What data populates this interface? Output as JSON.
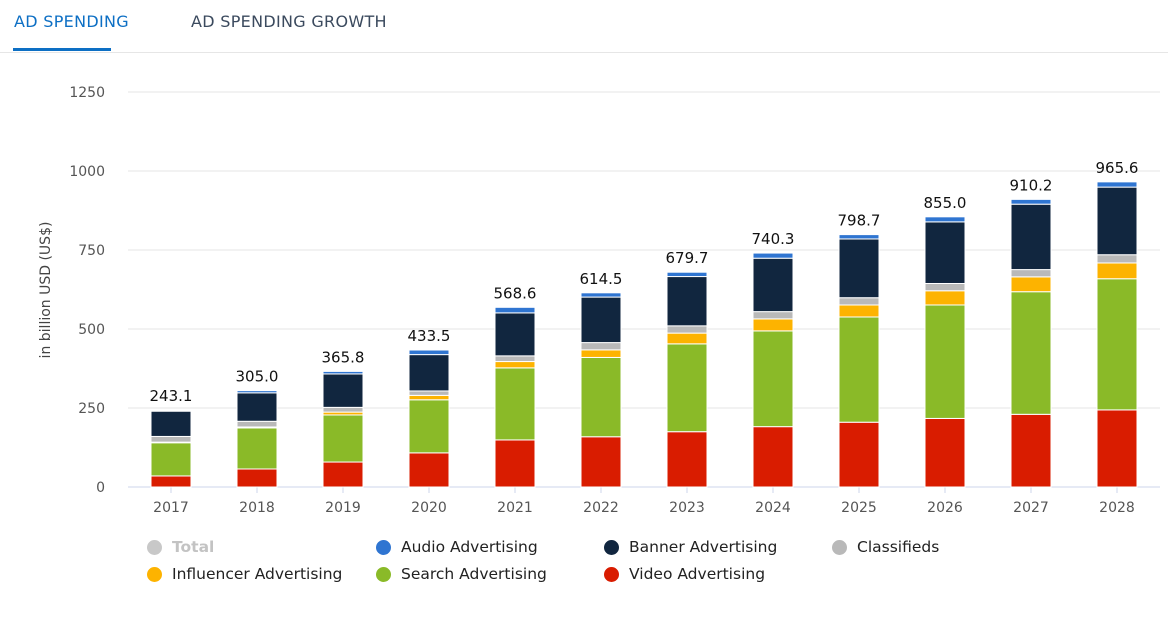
{
  "tabs": [
    {
      "label": "AD SPENDING",
      "active": true
    },
    {
      "label": "AD SPENDING GROWTH",
      "active": false
    }
  ],
  "chart_data": {
    "type": "bar",
    "stacked": true,
    "ylabel": "in billion USD (US$)",
    "xlabel": "",
    "ylim": [
      0,
      1250
    ],
    "yticks": [
      0,
      250,
      500,
      750,
      1000,
      1250
    ],
    "grid": true,
    "legend_position": "bottom",
    "categories": [
      "2017",
      "2018",
      "2019",
      "2020",
      "2021",
      "2022",
      "2023",
      "2024",
      "2025",
      "2026",
      "2027",
      "2028"
    ],
    "totals": [
      243.1,
      305.0,
      365.8,
      433.5,
      568.6,
      614.5,
      679.7,
      740.3,
      798.7,
      855.0,
      910.2,
      965.6
    ],
    "total_labels": [
      "243.1",
      "305.0",
      "365.8",
      "433.5",
      "568.6",
      "614.5",
      "679.7",
      "740.3",
      "798.7",
      "855.0",
      "910.2",
      "965.6"
    ],
    "series": [
      {
        "name": "Video Advertising",
        "color": "#d91c00",
        "values": [
          35,
          57,
          79,
          108,
          149,
          159,
          175,
          191,
          205,
          217,
          230,
          244
        ]
      },
      {
        "name": "Search Advertising",
        "color": "#8aba28",
        "values": [
          105,
          130,
          149,
          168,
          228,
          251,
          278,
          303,
          333,
          359,
          388,
          415
        ]
      },
      {
        "name": "Influencer Advertising",
        "color": "#fdb300",
        "values": [
          2,
          3,
          9,
          14,
          20,
          24,
          34,
          38,
          38,
          45,
          47,
          50
        ]
      },
      {
        "name": "Classifieds",
        "color": "#b9b9b9",
        "values": [
          18,
          18,
          15,
          14,
          18,
          23,
          23,
          23,
          23,
          23,
          23,
          26
        ]
      },
      {
        "name": "Banner Advertising",
        "color": "#11263f",
        "values": [
          80,
          90,
          105.8,
          115,
          136,
          144,
          156,
          169,
          186,
          195,
          207,
          214
        ]
      },
      {
        "name": "Audio Advertising",
        "color": "#2f75d1",
        "values": [
          3.1,
          7,
          8,
          14.5,
          17.6,
          13.5,
          13.7,
          16.3,
          13.7,
          16,
          15.2,
          16.6
        ]
      }
    ]
  },
  "legend": [
    {
      "label": "Total",
      "color": "#c8c8c8",
      "disabled": true
    },
    {
      "label": "Audio Advertising",
      "color": "#2f75d1"
    },
    {
      "label": "Banner Advertising",
      "color": "#11263f"
    },
    {
      "label": "Classifieds",
      "color": "#b9b9b9"
    },
    {
      "label": "Influencer Advertising",
      "color": "#fdb300"
    },
    {
      "label": "Search Advertising",
      "color": "#8aba28"
    },
    {
      "label": "Video Advertising",
      "color": "#d91c00"
    }
  ]
}
